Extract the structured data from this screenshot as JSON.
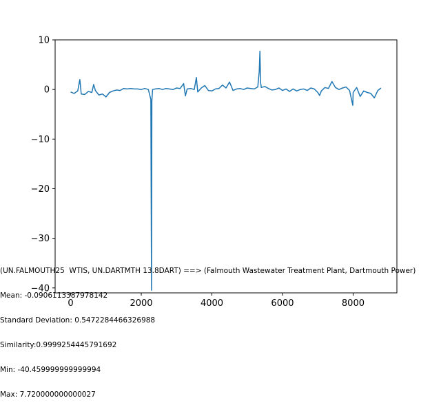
{
  "chart_data": {
    "type": "line",
    "title": "",
    "xlabel": "",
    "ylabel": "",
    "xlim": [
      -440,
      9240
    ],
    "ylim": [
      -41.0,
      10.0
    ],
    "x_ticks": [
      0,
      2000,
      4000,
      6000,
      8000
    ],
    "y_ticks": [
      10,
      0,
      -10,
      -20,
      -30,
      -40
    ],
    "x_tick_labels": [
      "0",
      "2000",
      "4000",
      "6000",
      "8000"
    ],
    "y_tick_labels": [
      "10",
      "0",
      "−10",
      "−20",
      "−30",
      "−40"
    ],
    "grid": false,
    "series": [
      {
        "color": "#1f77b4",
        "x": [
          0,
          100,
          200,
          260,
          300,
          400,
          500,
          600,
          650,
          700,
          800,
          900,
          1000,
          1100,
          1200,
          1300,
          1400,
          1500,
          1600,
          1700,
          1800,
          1900,
          2000,
          2100,
          2200,
          2270,
          2290,
          2300,
          2320,
          2400,
          2500,
          2600,
          2700,
          2800,
          2900,
          3000,
          3100,
          3200,
          3250,
          3300,
          3400,
          3500,
          3560,
          3600,
          3700,
          3800,
          3900,
          4000,
          4100,
          4200,
          4300,
          4400,
          4500,
          4600,
          4700,
          4800,
          4900,
          5000,
          5100,
          5200,
          5300,
          5340,
          5360,
          5380,
          5400,
          5500,
          5600,
          5700,
          5800,
          5900,
          6000,
          6100,
          6200,
          6300,
          6400,
          6500,
          6600,
          6700,
          6800,
          6900,
          7000,
          7050,
          7100,
          7200,
          7300,
          7400,
          7500,
          7600,
          7700,
          7800,
          7900,
          7990,
          8000,
          8100,
          8200,
          8300,
          8400,
          8500,
          8600,
          8700,
          8790
        ],
        "y": [
          -0.5,
          -0.8,
          -0.3,
          2.0,
          -0.9,
          -1.0,
          -0.4,
          -0.6,
          1.0,
          -0.2,
          -1.1,
          -0.9,
          -1.5,
          -0.6,
          -0.3,
          -0.1,
          -0.2,
          0.2,
          0.1,
          0.2,
          0.1,
          0.1,
          0.0,
          0.2,
          0.0,
          -2.0,
          -40.46,
          -2.3,
          0.0,
          0.1,
          0.2,
          0.0,
          0.2,
          0.1,
          0.0,
          0.3,
          0.2,
          1.2,
          -1.3,
          0.1,
          0.2,
          0.0,
          2.4,
          -0.5,
          0.3,
          0.8,
          -0.2,
          -0.3,
          0.1,
          0.2,
          0.9,
          0.3,
          1.5,
          -0.2,
          0.1,
          0.2,
          0.0,
          0.3,
          0.2,
          0.1,
          0.5,
          3.6,
          7.72,
          1.4,
          0.4,
          0.6,
          0.2,
          -0.1,
          0.0,
          0.3,
          -0.2,
          0.1,
          -0.4,
          0.1,
          -0.3,
          0.0,
          0.1,
          -0.2,
          0.3,
          0.1,
          -0.6,
          -1.2,
          -0.3,
          0.4,
          0.2,
          1.6,
          0.4,
          0.0,
          0.3,
          0.5,
          -0.2,
          -3.2,
          -0.6,
          0.4,
          -1.4,
          -0.3,
          -0.6,
          -0.8,
          -1.7,
          -0.2,
          0.3
        ]
      }
    ],
    "annotation_lines": [
      "(UN.FALMOUTH25  WTIS, UN.DARTMTH 13.8DART) ==> (Falmouth Wastewater Treatment Plant, Dartmouth Power)",
      "Mean: -0.0906113387978142",
      "Standard Deviation: 0.5472284466326988",
      "Similarity:0.9999254445791692",
      "Min: -40.459999999999994",
      "Max: 7.720000000000027"
    ]
  }
}
